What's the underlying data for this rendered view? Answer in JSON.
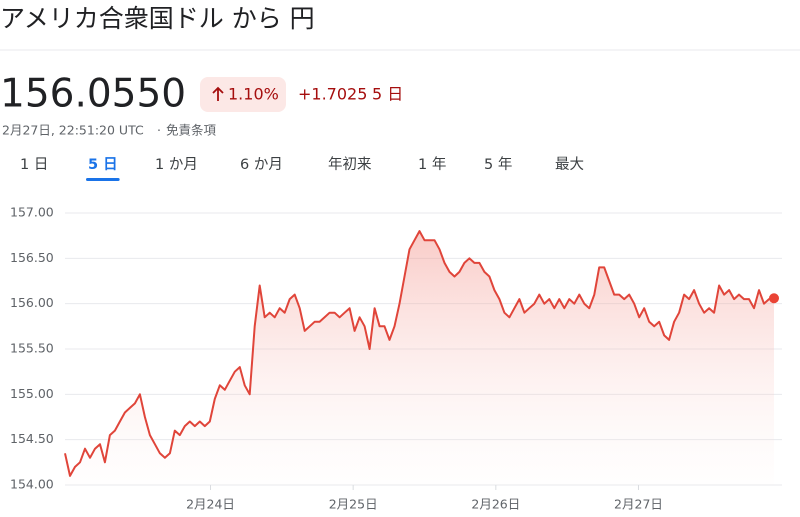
{
  "header": {
    "title": "アメリカ合衆国ドル から 円",
    "price": "156.0550",
    "change_percent": "1.10%",
    "change": "+1.7025",
    "period": "5 日",
    "timestamp": "2月27日, 22:51:20 UTC",
    "separator": "·",
    "disclaimer": "免責条項"
  },
  "tabs": [
    "1 日",
    "5 日",
    "1 か月",
    "6 か月",
    "年初来",
    "1 年",
    "5 年",
    "最大"
  ],
  "selected_tab": 1,
  "chart_data": {
    "type": "area",
    "color": "#e0453a",
    "x": [
      22.98,
      23.015,
      23.05,
      23.085,
      23.12,
      23.155,
      23.19,
      23.225,
      23.26,
      23.295,
      23.33,
      23.365,
      23.4,
      23.435,
      23.47,
      23.505,
      23.54,
      23.575,
      23.61,
      23.645,
      23.68,
      23.715,
      23.75,
      23.785,
      23.82,
      23.855,
      23.89,
      23.925,
      23.96,
      23.995,
      24.03,
      24.065,
      24.1,
      24.135,
      24.17,
      24.205,
      24.24,
      24.275,
      24.31,
      24.345,
      24.38,
      24.415,
      24.45,
      24.485,
      24.52,
      24.555,
      24.59,
      24.625,
      24.66,
      24.695,
      24.73,
      24.765,
      24.8,
      24.835,
      24.87,
      24.905,
      24.94,
      24.975,
      25.01,
      25.045,
      25.08,
      25.115,
      25.15,
      25.185,
      25.22,
      25.255,
      25.29,
      25.325,
      25.36,
      25.395,
      25.43,
      25.465,
      25.5,
      25.535,
      25.57,
      25.605,
      25.64,
      25.675,
      25.71,
      25.745,
      25.78,
      25.815,
      25.85,
      25.885,
      25.92,
      25.955,
      25.99,
      26.025,
      26.06,
      26.095,
      26.13,
      26.165,
      26.2,
      26.235,
      26.27,
      26.305,
      26.34,
      26.375,
      26.41,
      26.445,
      26.48,
      26.515,
      26.55,
      26.585,
      26.62,
      26.655,
      26.69,
      26.725,
      26.76,
      26.795,
      26.83,
      26.865,
      26.9,
      26.935,
      26.97,
      27.005,
      27.04,
      27.075,
      27.11,
      27.145,
      27.18,
      27.215,
      27.25,
      27.285,
      27.32,
      27.355,
      27.39,
      27.425,
      27.46,
      27.495,
      27.53,
      27.565,
      27.6,
      27.635,
      27.67,
      27.705,
      27.74,
      27.775,
      27.81,
      27.845,
      27.88,
      27.915,
      27.95
    ],
    "values": [
      154.35,
      154.1,
      154.2,
      154.25,
      154.4,
      154.3,
      154.4,
      154.45,
      154.25,
      154.55,
      154.6,
      154.7,
      154.8,
      154.85,
      154.9,
      155.0,
      154.75,
      154.55,
      154.45,
      154.35,
      154.3,
      154.35,
      154.6,
      154.55,
      154.65,
      154.7,
      154.65,
      154.7,
      154.65,
      154.7,
      154.95,
      155.1,
      155.05,
      155.15,
      155.25,
      155.3,
      155.1,
      155.0,
      155.75,
      156.2,
      155.85,
      155.9,
      155.85,
      155.95,
      155.9,
      156.05,
      156.1,
      155.95,
      155.7,
      155.75,
      155.8,
      155.8,
      155.85,
      155.9,
      155.9,
      155.85,
      155.9,
      155.95,
      155.7,
      155.85,
      155.75,
      155.5,
      155.95,
      155.75,
      155.75,
      155.6,
      155.75,
      156.0,
      156.3,
      156.6,
      156.7,
      156.8,
      156.7,
      156.7,
      156.7,
      156.6,
      156.45,
      156.35,
      156.3,
      156.35,
      156.45,
      156.5,
      156.45,
      156.45,
      156.35,
      156.3,
      156.15,
      156.05,
      155.9,
      155.85,
      155.95,
      156.05,
      155.9,
      155.95,
      156.0,
      156.1,
      156.0,
      156.05,
      155.95,
      156.05,
      155.95,
      156.05,
      156.0,
      156.1,
      156.0,
      155.95,
      156.1,
      156.4,
      156.4,
      156.25,
      156.1,
      156.1,
      156.05,
      156.1,
      156.0,
      155.85,
      155.95,
      155.8,
      155.75,
      155.8,
      155.65,
      155.6,
      155.8,
      155.9,
      156.1,
      156.05,
      156.15,
      156.0,
      155.9,
      155.95,
      155.9,
      156.2,
      156.1,
      156.15,
      156.05,
      156.1,
      156.05,
      156.05,
      155.95,
      156.15,
      156.0,
      156.05,
      156.06
    ],
    "xlim": [
      22.98,
      27.95
    ],
    "ylim": [
      154,
      157
    ],
    "xticks": [
      {
        "value": 24,
        "label": "2月24日"
      },
      {
        "value": 25,
        "label": "2月25日"
      },
      {
        "value": 26,
        "label": "2月26日"
      },
      {
        "value": 27,
        "label": "2月27日"
      }
    ],
    "yticks": [
      {
        "value": 154,
        "label": "154.00"
      },
      {
        "value": 154.5,
        "label": "154.50"
      },
      {
        "value": 155,
        "label": "155.00"
      },
      {
        "value": 155.5,
        "label": "155.50"
      },
      {
        "value": 156,
        "label": "156.00"
      },
      {
        "value": 156.5,
        "label": "156.50"
      },
      {
        "value": 157,
        "label": "157.00"
      }
    ],
    "grid": true
  }
}
